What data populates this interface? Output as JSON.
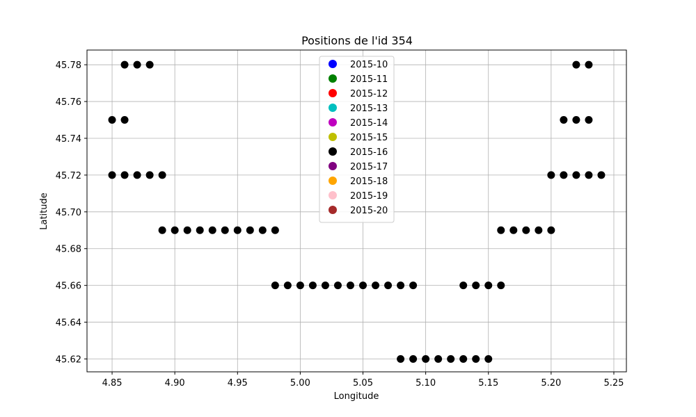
{
  "chart_data": {
    "type": "scatter",
    "title": "Positions de l'id 354",
    "xlabel": "Longitude",
    "ylabel": "Latitude",
    "xlim": [
      4.83,
      5.26
    ],
    "ylim": [
      45.613,
      45.788
    ],
    "xticks": [
      "4.85",
      "4.90",
      "4.95",
      "5.00",
      "5.05",
      "5.10",
      "5.15",
      "5.20",
      "5.25"
    ],
    "yticks": [
      "45.62",
      "45.64",
      "45.66",
      "45.68",
      "45.70",
      "45.72",
      "45.74",
      "45.76",
      "45.78"
    ],
    "grid": true,
    "legend_position": "top-center",
    "legend": [
      {
        "name": "2015-10",
        "color": "#0000ff"
      },
      {
        "name": "2015-11",
        "color": "#008000"
      },
      {
        "name": "2015-12",
        "color": "#ff0000"
      },
      {
        "name": "2015-13",
        "color": "#00bfbf"
      },
      {
        "name": "2015-14",
        "color": "#bf00bf"
      },
      {
        "name": "2015-15",
        "color": "#bfbf00"
      },
      {
        "name": "2015-16",
        "color": "#000000"
      },
      {
        "name": "2015-17",
        "color": "#800080"
      },
      {
        "name": "2015-18",
        "color": "#ffa500"
      },
      {
        "name": "2015-19",
        "color": "#ffc0cb"
      },
      {
        "name": "2015-20",
        "color": "#a52a2a"
      }
    ],
    "series": [
      {
        "name": "2015-16",
        "color": "#000000",
        "points": [
          [
            4.86,
            45.78
          ],
          [
            4.87,
            45.78
          ],
          [
            4.88,
            45.78
          ],
          [
            5.22,
            45.78
          ],
          [
            5.23,
            45.78
          ],
          [
            4.85,
            45.75
          ],
          [
            4.86,
            45.75
          ],
          [
            5.21,
            45.75
          ],
          [
            5.22,
            45.75
          ],
          [
            5.23,
            45.75
          ],
          [
            4.85,
            45.72
          ],
          [
            4.86,
            45.72
          ],
          [
            4.87,
            45.72
          ],
          [
            4.88,
            45.72
          ],
          [
            4.89,
            45.72
          ],
          [
            5.2,
            45.72
          ],
          [
            5.21,
            45.72
          ],
          [
            5.22,
            45.72
          ],
          [
            5.23,
            45.72
          ],
          [
            5.24,
            45.72
          ],
          [
            4.89,
            45.69
          ],
          [
            4.9,
            45.69
          ],
          [
            4.91,
            45.69
          ],
          [
            4.92,
            45.69
          ],
          [
            4.93,
            45.69
          ],
          [
            4.94,
            45.69
          ],
          [
            4.95,
            45.69
          ],
          [
            4.96,
            45.69
          ],
          [
            4.97,
            45.69
          ],
          [
            4.98,
            45.69
          ],
          [
            5.16,
            45.69
          ],
          [
            5.17,
            45.69
          ],
          [
            5.18,
            45.69
          ],
          [
            5.19,
            45.69
          ],
          [
            5.2,
            45.69
          ],
          [
            4.98,
            45.66
          ],
          [
            4.99,
            45.66
          ],
          [
            5.0,
            45.66
          ],
          [
            5.01,
            45.66
          ],
          [
            5.02,
            45.66
          ],
          [
            5.03,
            45.66
          ],
          [
            5.04,
            45.66
          ],
          [
            5.05,
            45.66
          ],
          [
            5.06,
            45.66
          ],
          [
            5.07,
            45.66
          ],
          [
            5.08,
            45.66
          ],
          [
            5.09,
            45.66
          ],
          [
            5.13,
            45.66
          ],
          [
            5.14,
            45.66
          ],
          [
            5.15,
            45.66
          ],
          [
            5.16,
            45.66
          ],
          [
            5.08,
            45.62
          ],
          [
            5.09,
            45.62
          ],
          [
            5.1,
            45.62
          ],
          [
            5.11,
            45.62
          ],
          [
            5.12,
            45.62
          ],
          [
            5.13,
            45.62
          ],
          [
            5.14,
            45.62
          ],
          [
            5.15,
            45.62
          ]
        ]
      }
    ]
  }
}
